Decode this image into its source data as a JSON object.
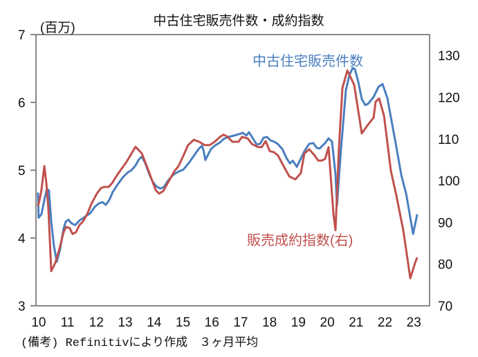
{
  "chart_data": {
    "type": "line",
    "title": "中古住宅販売件数・成約指数",
    "left_axis_unit": "(百万)",
    "footnote": "(備考) Refinitivにより作成　３ヶ月平均",
    "x_tick_labels": [
      "10",
      "11",
      "12",
      "13",
      "14",
      "15",
      "16",
      "17",
      "18",
      "19",
      "20",
      "21",
      "22",
      "23"
    ],
    "xlim": [
      2009.93,
      2023.57
    ],
    "y_left": {
      "ticks": [
        3,
        4,
        5,
        6,
        7
      ],
      "ylim": [
        3,
        7
      ]
    },
    "y_right": {
      "ticks": [
        70,
        80,
        90,
        100,
        110,
        120,
        130
      ],
      "ylim": [
        70,
        135
      ]
    },
    "grid": false,
    "series": [
      {
        "name": "中古住宅販売件数",
        "axis": "left",
        "color": "#4a7ebf",
        "points": [
          [
            2010.0,
            4.67
          ],
          [
            2010.02,
            4.3
          ],
          [
            2010.12,
            4.35
          ],
          [
            2010.24,
            4.6
          ],
          [
            2010.31,
            4.72
          ],
          [
            2010.38,
            4.7
          ],
          [
            2010.46,
            4.24
          ],
          [
            2010.55,
            3.89
          ],
          [
            2010.65,
            3.65
          ],
          [
            2010.77,
            3.84
          ],
          [
            2010.89,
            4.14
          ],
          [
            2010.96,
            4.24
          ],
          [
            2011.06,
            4.27
          ],
          [
            2011.15,
            4.22
          ],
          [
            2011.29,
            4.19
          ],
          [
            2011.44,
            4.26
          ],
          [
            2011.56,
            4.29
          ],
          [
            2011.68,
            4.33
          ],
          [
            2011.8,
            4.36
          ],
          [
            2011.97,
            4.46
          ],
          [
            2012.11,
            4.51
          ],
          [
            2012.23,
            4.53
          ],
          [
            2012.35,
            4.49
          ],
          [
            2012.47,
            4.56
          ],
          [
            2012.59,
            4.68
          ],
          [
            2012.76,
            4.79
          ],
          [
            2012.95,
            4.9
          ],
          [
            2013.12,
            4.97
          ],
          [
            2013.24,
            5.0
          ],
          [
            2013.38,
            5.07
          ],
          [
            2013.5,
            5.16
          ],
          [
            2013.6,
            5.2
          ],
          [
            2013.72,
            5.1
          ],
          [
            2013.84,
            4.96
          ],
          [
            2013.96,
            4.84
          ],
          [
            2014.1,
            4.76
          ],
          [
            2014.24,
            4.73
          ],
          [
            2014.36,
            4.75
          ],
          [
            2014.51,
            4.85
          ],
          [
            2014.68,
            4.93
          ],
          [
            2014.87,
            4.98
          ],
          [
            2015.04,
            5.01
          ],
          [
            2015.23,
            5.11
          ],
          [
            2015.4,
            5.21
          ],
          [
            2015.56,
            5.31
          ],
          [
            2015.68,
            5.36
          ],
          [
            2015.73,
            5.3
          ],
          [
            2015.8,
            5.15
          ],
          [
            2015.99,
            5.31
          ],
          [
            2016.12,
            5.36
          ],
          [
            2016.31,
            5.41
          ],
          [
            2016.43,
            5.46
          ],
          [
            2016.59,
            5.49
          ],
          [
            2016.79,
            5.51
          ],
          [
            2016.95,
            5.53
          ],
          [
            2017.1,
            5.55
          ],
          [
            2017.22,
            5.51
          ],
          [
            2017.31,
            5.56
          ],
          [
            2017.43,
            5.48
          ],
          [
            2017.58,
            5.38
          ],
          [
            2017.7,
            5.39
          ],
          [
            2017.82,
            5.48
          ],
          [
            2017.94,
            5.49
          ],
          [
            2018.06,
            5.44
          ],
          [
            2018.18,
            5.42
          ],
          [
            2018.3,
            5.39
          ],
          [
            2018.47,
            5.31
          ],
          [
            2018.61,
            5.18
          ],
          [
            2018.73,
            5.1
          ],
          [
            2018.83,
            5.14
          ],
          [
            2018.97,
            5.05
          ],
          [
            2019.23,
            5.28
          ],
          [
            2019.4,
            5.39
          ],
          [
            2019.54,
            5.4
          ],
          [
            2019.66,
            5.33
          ],
          [
            2019.76,
            5.32
          ],
          [
            2019.83,
            5.35
          ],
          [
            2019.95,
            5.4
          ],
          [
            2020.07,
            5.47
          ],
          [
            2020.19,
            5.42
          ],
          [
            2020.31,
            4.94
          ],
          [
            2020.36,
            4.48
          ],
          [
            2020.5,
            5.3
          ],
          [
            2020.67,
            6.18
          ],
          [
            2020.79,
            6.4
          ],
          [
            2020.91,
            6.51
          ],
          [
            2020.98,
            6.49
          ],
          [
            2021.1,
            6.3
          ],
          [
            2021.22,
            6.05
          ],
          [
            2021.34,
            5.96
          ],
          [
            2021.44,
            5.98
          ],
          [
            2021.63,
            6.08
          ],
          [
            2021.8,
            6.23
          ],
          [
            2021.94,
            6.27
          ],
          [
            2022.11,
            6.06
          ],
          [
            2022.23,
            5.78
          ],
          [
            2022.42,
            5.34
          ],
          [
            2022.59,
            4.93
          ],
          [
            2022.76,
            4.65
          ],
          [
            2023.0,
            4.06
          ],
          [
            2023.14,
            4.35
          ]
        ]
      },
      {
        "name": "販売成約指数(右)",
        "axis": "right",
        "color": "#c0504d",
        "points": [
          [
            2010.0,
            93.9
          ],
          [
            2010.05,
            95.2
          ],
          [
            2010.12,
            97.7
          ],
          [
            2010.22,
            103.5
          ],
          [
            2010.29,
            99.4
          ],
          [
            2010.36,
            93.5
          ],
          [
            2010.46,
            78.3
          ],
          [
            2010.6,
            80.3
          ],
          [
            2010.74,
            83.6
          ],
          [
            2010.89,
            87.7
          ],
          [
            2010.98,
            88.9
          ],
          [
            2011.1,
            88.6
          ],
          [
            2011.2,
            87.2
          ],
          [
            2011.32,
            87.7
          ],
          [
            2011.44,
            89.4
          ],
          [
            2011.56,
            90.2
          ],
          [
            2011.7,
            91.9
          ],
          [
            2011.85,
            94.4
          ],
          [
            2012.04,
            96.9
          ],
          [
            2012.18,
            98.2
          ],
          [
            2012.3,
            98.5
          ],
          [
            2012.45,
            98.5
          ],
          [
            2012.57,
            99.4
          ],
          [
            2012.71,
            101.0
          ],
          [
            2012.88,
            102.7
          ],
          [
            2013.05,
            104.3
          ],
          [
            2013.24,
            106.5
          ],
          [
            2013.38,
            108.1
          ],
          [
            2013.6,
            106.5
          ],
          [
            2013.84,
            102.2
          ],
          [
            2014.08,
            97.7
          ],
          [
            2014.2,
            96.9
          ],
          [
            2014.34,
            97.5
          ],
          [
            2014.56,
            100.2
          ],
          [
            2014.72,
            102.2
          ],
          [
            2014.87,
            103.5
          ],
          [
            2015.04,
            106.0
          ],
          [
            2015.2,
            108.5
          ],
          [
            2015.4,
            109.8
          ],
          [
            2015.59,
            109.3
          ],
          [
            2015.78,
            108.5
          ],
          [
            2015.95,
            108.5
          ],
          [
            2016.12,
            109.3
          ],
          [
            2016.31,
            110.5
          ],
          [
            2016.43,
            111.0
          ],
          [
            2016.55,
            110.6
          ],
          [
            2016.74,
            109.3
          ],
          [
            2016.95,
            109.3
          ],
          [
            2017.07,
            110.5
          ],
          [
            2017.27,
            110.1
          ],
          [
            2017.41,
            108.8
          ],
          [
            2017.6,
            108.1
          ],
          [
            2017.75,
            108.0
          ],
          [
            2017.89,
            109.5
          ],
          [
            2018.03,
            107.1
          ],
          [
            2018.18,
            106.8
          ],
          [
            2018.32,
            106.0
          ],
          [
            2018.51,
            103.5
          ],
          [
            2018.71,
            101.0
          ],
          [
            2018.92,
            100.3
          ],
          [
            2019.11,
            101.8
          ],
          [
            2019.23,
            106.5
          ],
          [
            2019.4,
            107.5
          ],
          [
            2019.59,
            106.0
          ],
          [
            2019.71,
            104.8
          ],
          [
            2019.83,
            104.8
          ],
          [
            2019.95,
            105.2
          ],
          [
            2020.07,
            108.0
          ],
          [
            2020.24,
            91.9
          ],
          [
            2020.31,
            88.1
          ],
          [
            2020.43,
            108.0
          ],
          [
            2020.55,
            122.2
          ],
          [
            2020.72,
            126.4
          ],
          [
            2020.84,
            124.7
          ],
          [
            2020.96,
            122.9
          ],
          [
            2021.22,
            111.3
          ],
          [
            2021.39,
            113.0
          ],
          [
            2021.63,
            115.1
          ],
          [
            2021.7,
            118.9
          ],
          [
            2021.82,
            119.7
          ],
          [
            2021.99,
            115.6
          ],
          [
            2022.23,
            102.3
          ],
          [
            2022.42,
            96.4
          ],
          [
            2022.66,
            88.1
          ],
          [
            2022.9,
            76.6
          ],
          [
            2023.07,
            80.3
          ],
          [
            2023.14,
            81.6
          ]
        ]
      }
    ]
  }
}
